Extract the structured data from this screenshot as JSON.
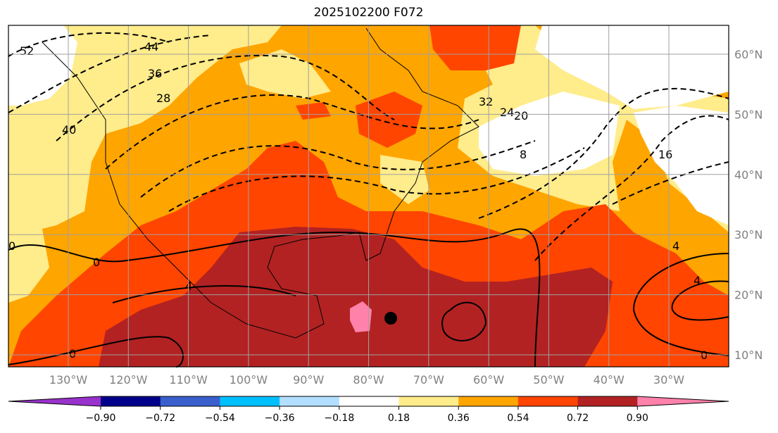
{
  "title": "2025102200 F072",
  "map": {
    "lon_labels": [
      "130°W",
      "120°W",
      "110°W",
      "100°W",
      "90°W",
      "80°W",
      "70°W",
      "60°W",
      "50°W",
      "40°W",
      "30°W"
    ],
    "lat_labels": [
      "60°N",
      "50°N",
      "40°N",
      "30°N",
      "20°N",
      "10°N"
    ],
    "contour_labels": [
      "52",
      "44",
      "36",
      "28",
      "40",
      "32",
      "24",
      "20",
      "8",
      "16",
      "0",
      "4",
      "0",
      "4",
      "0",
      "0",
      "4"
    ],
    "marker": "storm-position-dot"
  },
  "colorbar": {
    "ticks": [
      "−0.90",
      "−0.72",
      "−0.54",
      "−0.36",
      "−0.18",
      "0.18",
      "0.36",
      "0.54",
      "0.72",
      "0.90"
    ],
    "colors": [
      "#9932cc",
      "#00008b",
      "#3a5fcd",
      "#00bfff",
      "#b2dfff",
      "#ffffff",
      "#ffec8b",
      "#ffa500",
      "#ff4500",
      "#b22222",
      "#ff82ab"
    ]
  },
  "colors": {
    "yellow": "#ffec8b",
    "orange": "#ffa500",
    "redorange": "#ff4500",
    "darkred": "#b22222",
    "pink": "#ff82ab",
    "grid": "#a0a0a0"
  }
}
